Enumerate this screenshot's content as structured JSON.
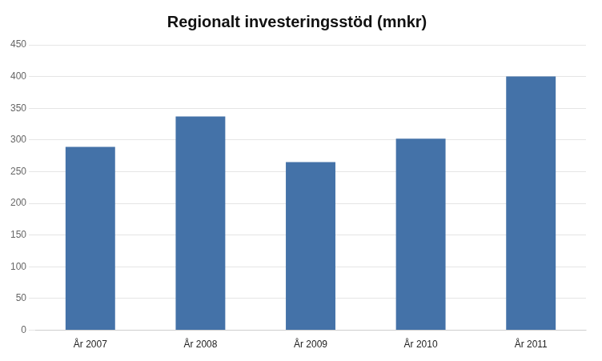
{
  "chart_data": {
    "type": "bar",
    "title": "Regionalt investeringsstöd (mnkr)",
    "categories": [
      "År 2007",
      "År 2008",
      "År 2009",
      "År 2010",
      "År 2011"
    ],
    "values": [
      289,
      337,
      265,
      302,
      400
    ],
    "color": "#4472a8",
    "ylim": [
      0,
      450
    ],
    "yticks": [
      0,
      50,
      100,
      150,
      200,
      250,
      300,
      350,
      400,
      450
    ],
    "grid": true
  }
}
